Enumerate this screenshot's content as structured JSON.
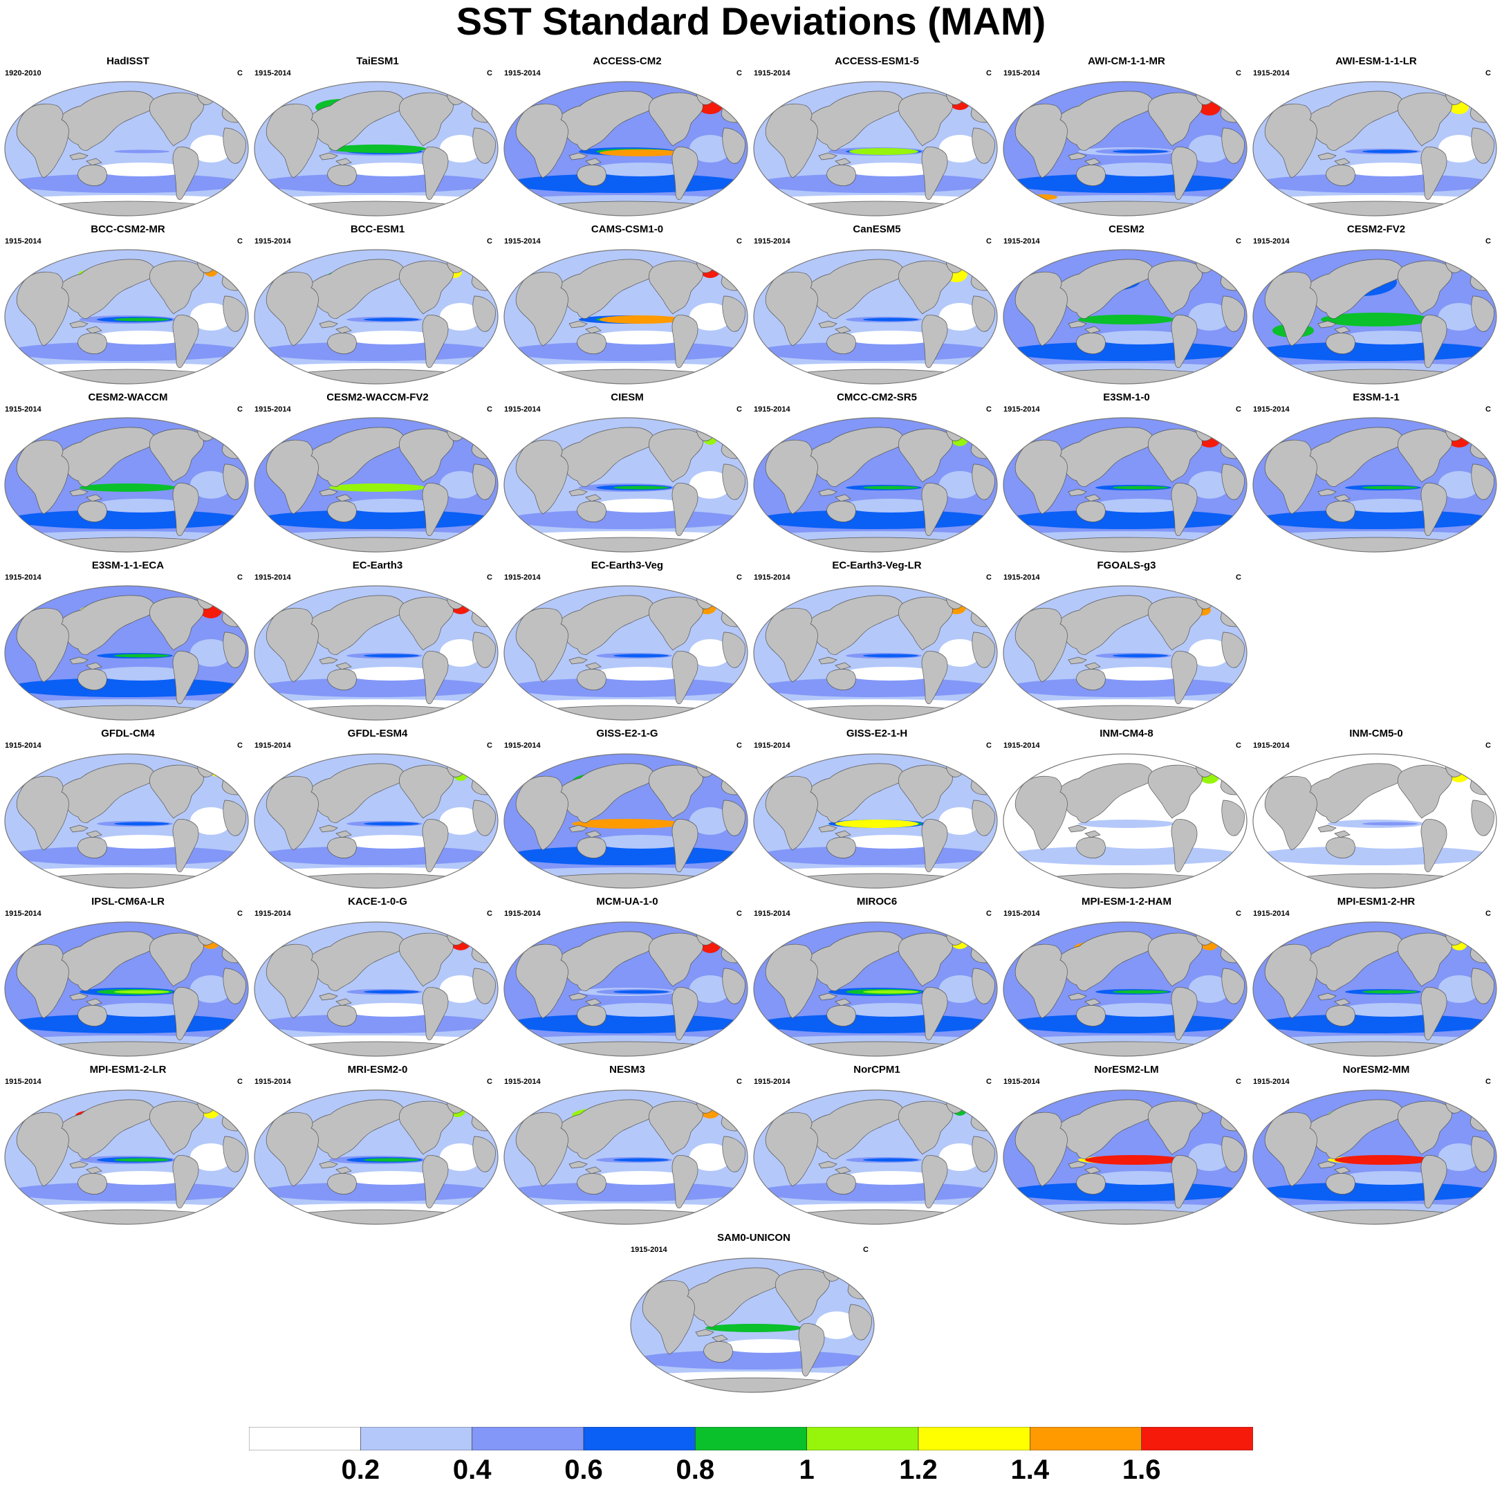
{
  "figure": {
    "title": "SST Standard Deviations (MAM)"
  },
  "colors": {
    "land": "#c0c0c0",
    "coast": "#555555",
    "frame": "#777777"
  },
  "colorbar": {
    "ticks": [
      "0.2",
      "0.4",
      "0.6",
      "0.8",
      "1",
      "1.2",
      "1.4",
      "1.6"
    ],
    "levels": [
      {
        "min": 0.0,
        "max": 0.2,
        "color": "#ffffff"
      },
      {
        "min": 0.2,
        "max": 0.4,
        "color": "#b4c8fa"
      },
      {
        "min": 0.4,
        "max": 0.6,
        "color": "#8297f7"
      },
      {
        "min": 0.6,
        "max": 0.8,
        "color": "#0a5ff5"
      },
      {
        "min": 0.8,
        "max": 1.0,
        "color": "#0ac02b"
      },
      {
        "min": 1.0,
        "max": 1.2,
        "color": "#96f50a"
      },
      {
        "min": 1.2,
        "max": 1.4,
        "color": "#ffff00"
      },
      {
        "min": 1.4,
        "max": 1.6,
        "color": "#ff9a00"
      },
      {
        "min": 1.6,
        "max": 1.8,
        "color": "#f51a0a"
      }
    ]
  },
  "panels": [
    {
      "name": "HadISST",
      "period": "1920-2010",
      "unit": "C"
    },
    {
      "name": "TaiESM1",
      "period": "1915-2014",
      "unit": "C"
    },
    {
      "name": "ACCESS-CM2",
      "period": "1915-2014",
      "unit": "C"
    },
    {
      "name": "ACCESS-ESM1-5",
      "period": "1915-2014",
      "unit": "C"
    },
    {
      "name": "AWI-CM-1-1-MR",
      "period": "1915-2014",
      "unit": "C"
    },
    {
      "name": "AWI-ESM-1-1-LR",
      "period": "1915-2014",
      "unit": "C"
    },
    {
      "name": "BCC-CSM2-MR",
      "period": "1915-2014",
      "unit": "C"
    },
    {
      "name": "BCC-ESM1",
      "period": "1915-2014",
      "unit": "C"
    },
    {
      "name": "CAMS-CSM1-0",
      "period": "1915-2014",
      "unit": "C"
    },
    {
      "name": "CanESM5",
      "period": "1915-2014",
      "unit": "C"
    },
    {
      "name": "CESM2",
      "period": "1915-2014",
      "unit": "C"
    },
    {
      "name": "CESM2-FV2",
      "period": "1915-2014",
      "unit": "C"
    },
    {
      "name": "CESM2-WACCM",
      "period": "1915-2014",
      "unit": "C"
    },
    {
      "name": "CESM2-WACCM-FV2",
      "period": "1915-2014",
      "unit": "C"
    },
    {
      "name": "CIESM",
      "period": "1915-2014",
      "unit": "C"
    },
    {
      "name": "CMCC-CM2-SR5",
      "period": "1915-2014",
      "unit": "C"
    },
    {
      "name": "E3SM-1-0",
      "period": "1915-2014",
      "unit": "C"
    },
    {
      "name": "E3SM-1-1",
      "period": "1915-2014",
      "unit": "C"
    },
    {
      "name": "E3SM-1-1-ECA",
      "period": "1915-2014",
      "unit": "C"
    },
    {
      "name": "EC-Earth3",
      "period": "1915-2014",
      "unit": "C"
    },
    {
      "name": "EC-Earth3-Veg",
      "period": "1915-2014",
      "unit": "C"
    },
    {
      "name": "EC-Earth3-Veg-LR",
      "period": "1915-2014",
      "unit": "C"
    },
    {
      "name": "FGOALS-g3",
      "period": "1915-2014",
      "unit": "C"
    },
    {
      "name": "GFDL-CM4",
      "period": "1915-2014",
      "unit": "C"
    },
    {
      "name": "GFDL-ESM4",
      "period": "1915-2014",
      "unit": "C"
    },
    {
      "name": "GISS-E2-1-G",
      "period": "1915-2014",
      "unit": "C"
    },
    {
      "name": "GISS-E2-1-H",
      "period": "1915-2014",
      "unit": "C"
    },
    {
      "name": "INM-CM4-8",
      "period": "1915-2014",
      "unit": "C"
    },
    {
      "name": "INM-CM5-0",
      "period": "1915-2014",
      "unit": "C"
    },
    {
      "name": "IPSL-CM6A-LR",
      "period": "1915-2014",
      "unit": "C"
    },
    {
      "name": "KACE-1-0-G",
      "period": "1915-2014",
      "unit": "C"
    },
    {
      "name": "MCM-UA-1-0",
      "period": "1915-2014",
      "unit": "C"
    },
    {
      "name": "MIROC6",
      "period": "1915-2014",
      "unit": "C"
    },
    {
      "name": "MPI-ESM-1-2-HAM",
      "period": "1915-2014",
      "unit": "C"
    },
    {
      "name": "MPI-ESM1-2-HR",
      "period": "1915-2014",
      "unit": "C"
    },
    {
      "name": "MPI-ESM1-2-LR",
      "period": "1915-2014",
      "unit": "C"
    },
    {
      "name": "MRI-ESM2-0",
      "period": "1915-2014",
      "unit": "C"
    },
    {
      "name": "NESM3",
      "period": "1915-2014",
      "unit": "C"
    },
    {
      "name": "NorCPM1",
      "period": "1915-2014",
      "unit": "C"
    },
    {
      "name": "NorESM2-LM",
      "period": "1915-2014",
      "unit": "C"
    },
    {
      "name": "NorESM2-MM",
      "period": "1915-2014",
      "unit": "C"
    },
    {
      "name": "SAM0-UNICON",
      "period": "1915-2014",
      "unit": "C"
    }
  ]
}
